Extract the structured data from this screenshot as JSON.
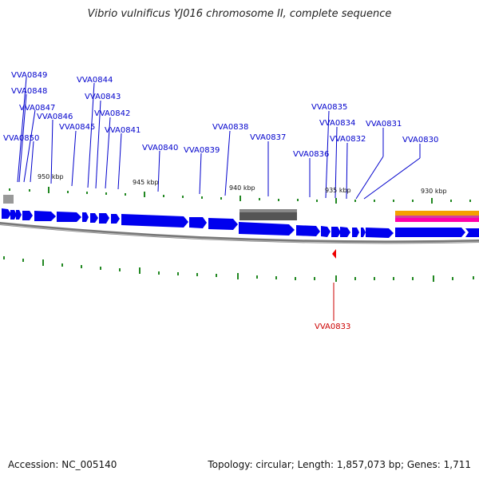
{
  "title": "Vibrio vulnificus YJ016 chromosome II, complete sequence",
  "footer": {
    "accession": "Accession: NC_005140",
    "info": "Topology: circular; Length: 1,857,073 bp; Genes: 1,711"
  },
  "scale_labels": [
    "950 kbp",
    "945 kbp",
    "940 kbp",
    "935 kbp",
    "930 kbp"
  ],
  "gene_labels": [
    "VVA0849",
    "VVA0848",
    "VVA0847",
    "VVA0846",
    "VVA0850",
    "VVA0845",
    "VVA0844",
    "VVA0843",
    "VVA0842",
    "VVA0841",
    "VVA0840",
    "VVA0839",
    "VVA0838",
    "VVA0837",
    "VVA0836",
    "VVA0835",
    "VVA0834",
    "VVA0832",
    "VVA0831",
    "VVA0830"
  ],
  "highlighted_gene": "VVA0833",
  "colors": {
    "gene_fill": "#0000ee",
    "highlight": "#ee0000",
    "tick": "#228822",
    "backbone": "#888888",
    "label_blue": "#0000cc",
    "label_red": "#cc0000"
  }
}
